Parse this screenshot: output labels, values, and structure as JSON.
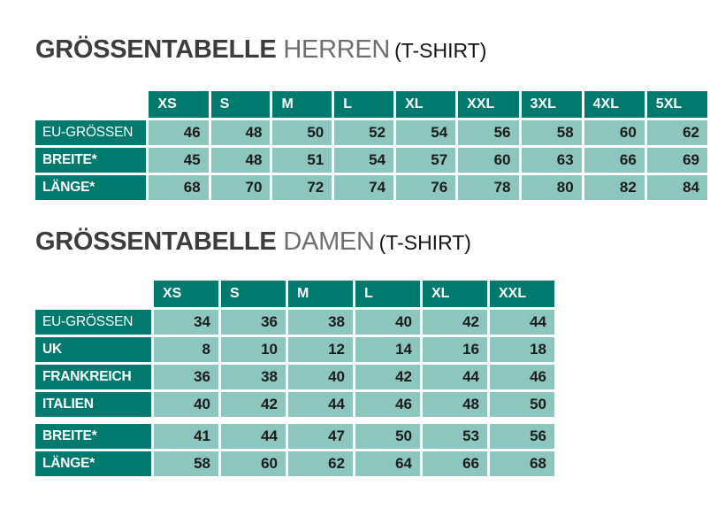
{
  "colors": {
    "header_teal": "#007a6f",
    "cell_teal": "#8cc6bc",
    "title_dark": "#3d3d3d",
    "title_light": "#6f6f6f",
    "suffix_black": "#141414",
    "background": "#ffffff",
    "cell_text": "#1c1c1c"
  },
  "sections": [
    {
      "title_main": "GRÖSSENTABELLE",
      "title_sub": "HERREN",
      "title_suffix": "(T-SHIRT)",
      "table": {
        "columns": [
          "XS",
          "S",
          "M",
          "L",
          "XL",
          "XXL",
          "3XL",
          "4XL",
          "5XL"
        ],
        "rows": [
          {
            "label": "EU-GRÖSSEN",
            "bold": false,
            "gap_before": false,
            "values": [
              46,
              48,
              50,
              52,
              54,
              56,
              58,
              60,
              62
            ]
          },
          {
            "label": "BREITE*",
            "bold": true,
            "gap_before": false,
            "values": [
              45,
              48,
              51,
              54,
              57,
              60,
              63,
              66,
              69
            ]
          },
          {
            "label": "LÄNGE*",
            "bold": true,
            "gap_before": false,
            "values": [
              68,
              70,
              72,
              74,
              76,
              78,
              80,
              82,
              84
            ]
          }
        ]
      }
    },
    {
      "title_main": "GRÖSSENTABELLE",
      "title_sub": "DAMEN",
      "title_suffix": "(T-SHIRT)",
      "table": {
        "columns": [
          "XS",
          "S",
          "M",
          "L",
          "XL",
          "XXL"
        ],
        "rows": [
          {
            "label": "EU-GRÖSSEN",
            "bold": false,
            "gap_before": false,
            "values": [
              34,
              36,
              38,
              40,
              42,
              44
            ]
          },
          {
            "label": "UK",
            "bold": true,
            "gap_before": false,
            "values": [
              8,
              10,
              12,
              14,
              16,
              18
            ]
          },
          {
            "label": "FRANKREICH",
            "bold": true,
            "gap_before": false,
            "values": [
              36,
              38,
              40,
              42,
              44,
              46
            ]
          },
          {
            "label": "ITALIEN",
            "bold": true,
            "gap_before": false,
            "values": [
              40,
              42,
              44,
              46,
              48,
              50
            ]
          },
          {
            "label": "BREITE*",
            "bold": true,
            "gap_before": true,
            "values": [
              41,
              44,
              47,
              50,
              53,
              56
            ]
          },
          {
            "label": "LÄNGE*",
            "bold": true,
            "gap_before": false,
            "values": [
              58,
              60,
              62,
              64,
              66,
              68
            ]
          }
        ]
      }
    }
  ]
}
